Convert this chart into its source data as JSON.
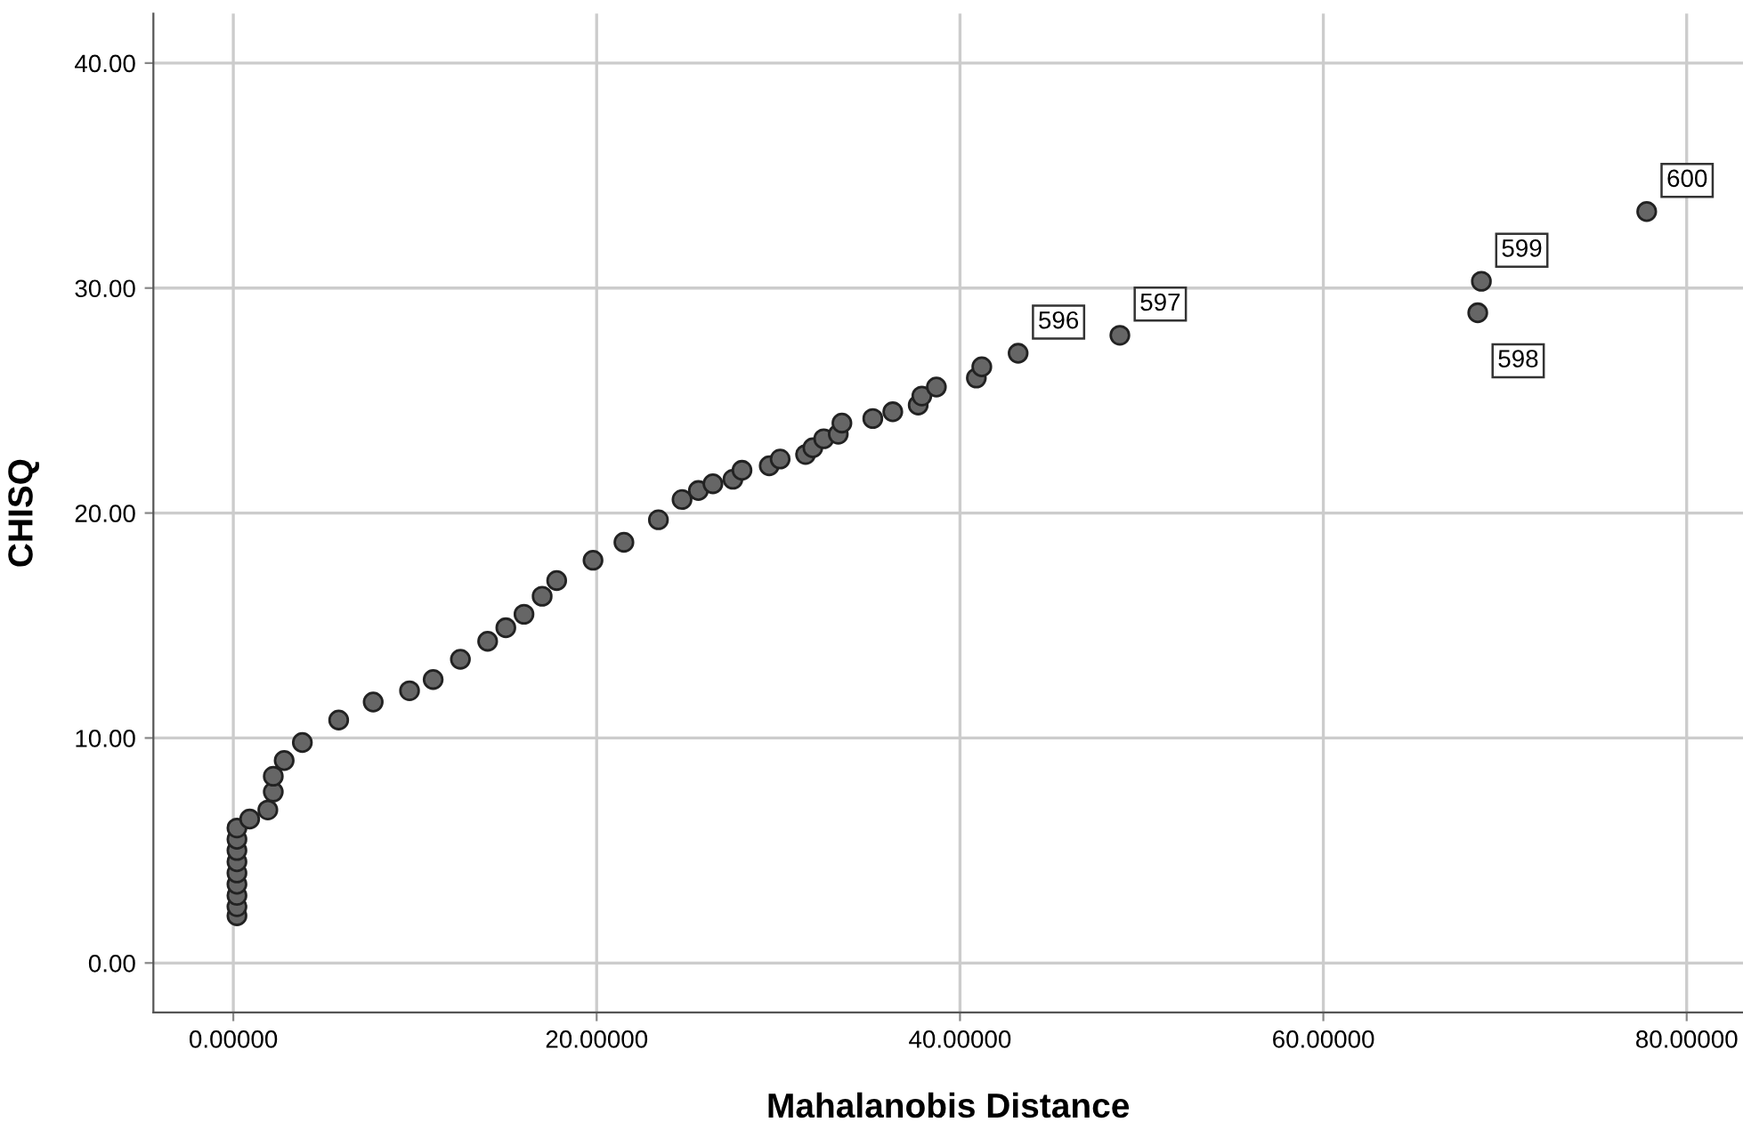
{
  "chart_data": {
    "type": "scatter",
    "xlabel": "Mahalanobis Distance",
    "ylabel": "CHISQ",
    "x": [
      0.2,
      0.2,
      0.2,
      0.2,
      0.2,
      0.2,
      0.2,
      0.2,
      0.2,
      0.9,
      1.9,
      2.2,
      2.2,
      2.8,
      3.8,
      5.8,
      7.7,
      9.7,
      11.0,
      12.5,
      14.0,
      15.0,
      16.0,
      17.0,
      17.8,
      19.8,
      21.5,
      23.4,
      24.7,
      25.6,
      26.4,
      27.5,
      28.0,
      29.5,
      30.1,
      31.5,
      31.9,
      32.5,
      33.3,
      33.5,
      35.2,
      36.3,
      37.7,
      37.9,
      38.7,
      40.9,
      41.2,
      43.2,
      48.8,
      68.5,
      68.7,
      77.8
    ],
    "series": [
      {
        "color": "#666666",
        "values": [
          2.1,
          2.5,
          3.0,
          3.5,
          4.0,
          4.5,
          5.0,
          5.5,
          6.0,
          6.4,
          6.8,
          7.6,
          8.3,
          9.0,
          9.8,
          10.8,
          11.6,
          12.1,
          12.6,
          13.5,
          14.3,
          14.9,
          15.5,
          16.3,
          17.0,
          17.9,
          18.7,
          19.7,
          20.6,
          21.0,
          21.3,
          21.5,
          21.9,
          22.1,
          22.4,
          22.6,
          22.9,
          23.3,
          23.5,
          24.0,
          24.2,
          24.5,
          24.8,
          25.2,
          25.6,
          26.0,
          26.5,
          27.1,
          27.9,
          28.9,
          30.3,
          33.4
        ]
      }
    ],
    "xlim": [
      -4.4,
      83.1
    ],
    "ylim": [
      -2.2,
      42.2
    ],
    "xticks": [
      {
        "value": 0,
        "label": "0.00000"
      },
      {
        "value": 20,
        "label": "20.00000"
      },
      {
        "value": 40,
        "label": "40.00000"
      },
      {
        "value": 60,
        "label": "60.00000"
      },
      {
        "value": 80,
        "label": "80.00000"
      }
    ],
    "yticks": [
      {
        "value": 0,
        "label": "0.00"
      },
      {
        "value": 10,
        "label": "10.00"
      },
      {
        "value": 20,
        "label": "20.00"
      },
      {
        "value": 30,
        "label": "30.00"
      },
      {
        "value": 40,
        "label": "40.00"
      }
    ],
    "grid": true,
    "marker": "circle",
    "annotations": [
      {
        "text": "596",
        "x": 43.2,
        "y": 27.1
      },
      {
        "text": "597",
        "x": 48.8,
        "y": 27.9
      },
      {
        "text": "598",
        "x": 68.5,
        "y": 28.9
      },
      {
        "text": "599",
        "x": 68.7,
        "y": 30.3
      },
      {
        "text": "600",
        "x": 77.8,
        "y": 33.4
      }
    ]
  }
}
